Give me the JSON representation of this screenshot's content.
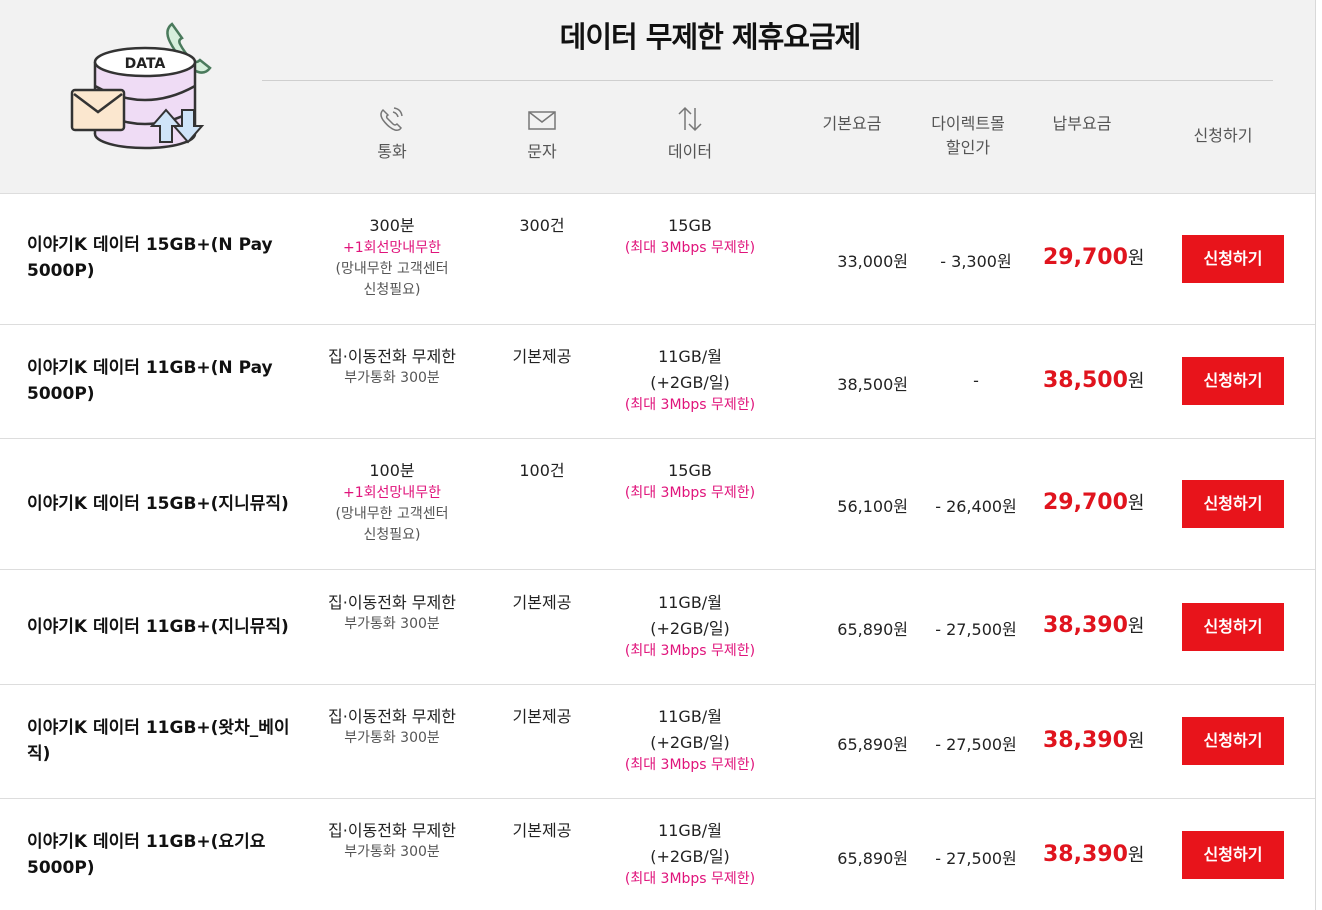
{
  "title": "데이터 무제한 제휴요금제",
  "hero_label": "DATA",
  "colors": {
    "accent_red": "#e8141b",
    "pink": "#e0137b",
    "header_bg": "#f2f2f2"
  },
  "columns": {
    "call": {
      "label": "통화",
      "icon": "phone-icon"
    },
    "sms": {
      "label": "문자",
      "icon": "envelope-icon"
    },
    "data": {
      "label": "데이터",
      "icon": "up-down-arrows-icon"
    },
    "base": "기본요금",
    "discount_l1": "다이렉트몰",
    "discount_l2": "할인가",
    "pay": "납부요금",
    "apply": "신청하기"
  },
  "plans": [
    {
      "name": "이야기K 데이터 15GB+(N Pay 5000P)",
      "call": "300분",
      "call_extra": "+1회선망내무한",
      "call_note1": "(망내무한 고객센터",
      "call_note2": "신청필요)",
      "sms": "300건",
      "data": "15GB",
      "data2": "",
      "data_note": "(최대 3Mbps 무제한)",
      "base": "33,000원",
      "discount": "- 3,300원",
      "pay": "29,700",
      "won": "원",
      "button": "신청하기"
    },
    {
      "name": "이야기K 데이터 11GB+(N Pay 5000P)",
      "call": "집·이동전화 무제한",
      "call_extra": "",
      "call_note1": "부가통화 300분",
      "call_note2": "",
      "sms": "기본제공",
      "data": "11GB/월",
      "data2": "(+2GB/일)",
      "data_note": "(최대 3Mbps 무제한)",
      "base": "38,500원",
      "discount": "-",
      "pay": "38,500",
      "won": "원",
      "button": "신청하기"
    },
    {
      "name": "이야기K 데이터 15GB+(지니뮤직)",
      "call": "100분",
      "call_extra": "+1회선망내무한",
      "call_note1": "(망내무한 고객센터",
      "call_note2": "신청필요)",
      "sms": "100건",
      "data": "15GB",
      "data2": "",
      "data_note": "(최대 3Mbps 무제한)",
      "base": "56,100원",
      "discount": "- 26,400원",
      "pay": "29,700",
      "won": "원",
      "button": "신청하기"
    },
    {
      "name": "이야기K 데이터 11GB+(지니뮤직)",
      "call": "집·이동전화 무제한",
      "call_extra": "",
      "call_note1": "부가통화 300분",
      "call_note2": "",
      "sms": "기본제공",
      "data": "11GB/월",
      "data2": "(+2GB/일)",
      "data_note": "(최대 3Mbps 무제한)",
      "base": "65,890원",
      "discount": "- 27,500원",
      "pay": "38,390",
      "won": "원",
      "button": "신청하기"
    },
    {
      "name": "이야기K 데이터 11GB+(왓차_베이직)",
      "call": "집·이동전화 무제한",
      "call_extra": "",
      "call_note1": "부가통화 300분",
      "call_note2": "",
      "sms": "기본제공",
      "data": "11GB/월",
      "data2": "(+2GB/일)",
      "data_note": "(최대 3Mbps 무제한)",
      "base": "65,890원",
      "discount": "- 27,500원",
      "pay": "38,390",
      "won": "원",
      "button": "신청하기"
    },
    {
      "name": "이야기K 데이터 11GB+(요기요 5000P)",
      "call": "집·이동전화 무제한",
      "call_extra": "",
      "call_note1": "부가통화 300분",
      "call_note2": "",
      "sms": "기본제공",
      "data": "11GB/월",
      "data2": "(+2GB/일)",
      "data_note": "(최대 3Mbps 무제한)",
      "base": "65,890원",
      "discount": "- 27,500원",
      "pay": "38,390",
      "won": "원",
      "button": "신청하기"
    }
  ]
}
